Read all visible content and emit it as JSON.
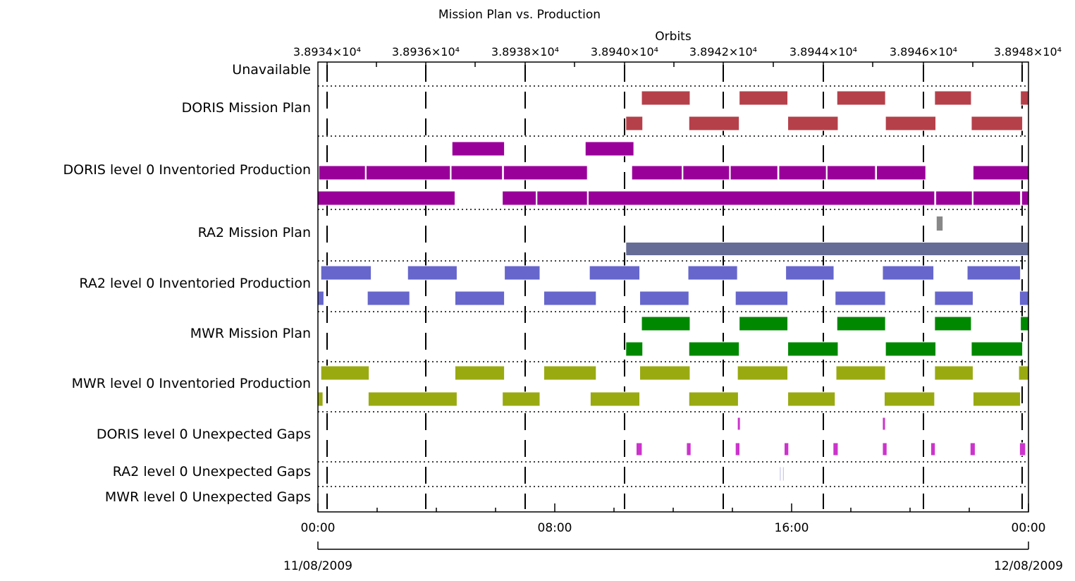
{
  "chart_data": {
    "type": "timeline",
    "title": "Mission Plan vs. Production",
    "top_axis": {
      "label": "Orbits",
      "ticks": [
        "3.8934×10⁴",
        "3.8936×10⁴",
        "3.8938×10⁴",
        "3.8940×10⁴",
        "3.8942×10⁴",
        "3.8944×10⁴",
        "3.8946×10⁴",
        "3.8948×10⁴"
      ],
      "range": [
        38934,
        38948
      ]
    },
    "bottom_axis": {
      "ticks": [
        "00:00",
        "08:00",
        "16:00",
        "00:00"
      ],
      "range_hours": [
        0,
        24
      ],
      "start_date": "11/08/2009",
      "end_date": "12/08/2009"
    },
    "grid": true,
    "rows": [
      {
        "label": "Unavailable",
        "tracks": []
      },
      {
        "label": "DORIS Mission Plan",
        "color": "#b5404a",
        "tracks": [
          [
            [
              10.93,
              12.57
            ],
            [
              14.23,
              15.87
            ],
            [
              17.53,
              19.17
            ],
            [
              20.83,
              22.07
            ],
            [
              23.73,
              24.0
            ]
          ],
          [
            [
              10.4,
              10.97
            ],
            [
              12.53,
              14.23
            ],
            [
              15.87,
              17.57
            ],
            [
              19.17,
              20.87
            ],
            [
              22.07,
              23.8
            ]
          ]
        ]
      },
      {
        "label": "DORIS level 0 Inventoried Production",
        "color": "#990099",
        "tracks": [
          [
            [
              4.53,
              6.3
            ],
            [
              9.03,
              10.67
            ]
          ],
          [
            [
              0.03,
              1.6
            ],
            [
              1.63,
              4.47
            ],
            [
              4.5,
              6.23
            ],
            [
              6.27,
              9.1
            ],
            [
              10.6,
              12.3
            ],
            [
              12.33,
              13.9
            ],
            [
              13.93,
              15.53
            ],
            [
              15.57,
              17.17
            ],
            [
              17.2,
              18.83
            ],
            [
              18.87,
              20.53
            ],
            [
              22.13,
              24.0
            ]
          ],
          [
            [
              0.0,
              4.63
            ],
            [
              6.23,
              7.37
            ],
            [
              7.4,
              9.1
            ],
            [
              9.13,
              20.83
            ],
            [
              20.87,
              22.1
            ],
            [
              22.13,
              23.73
            ],
            [
              23.77,
              24.0
            ]
          ]
        ],
        "extra_tracks": [
          [
            [
              20.9,
              21.1
            ]
          ]
        ]
      },
      {
        "label": "RA2 Mission Plan",
        "color": "#656d96",
        "tracks": [
          [
            [
              10.4,
              24.0
            ]
          ]
        ],
        "marks": [
          [
            20.9,
            21.0
          ]
        ]
      },
      {
        "label": "RA2 level 0 Inventoried Production",
        "color": "#6666cc",
        "tracks": [
          [
            [
              0.1,
              1.8
            ],
            [
              3.03,
              4.7
            ],
            [
              6.3,
              7.5
            ],
            [
              9.17,
              10.87
            ],
            [
              12.5,
              14.17
            ],
            [
              15.8,
              17.43
            ],
            [
              19.07,
              20.8
            ],
            [
              21.93,
              23.73
            ]
          ],
          [
            [
              0.0,
              0.2
            ],
            [
              1.67,
              3.1
            ],
            [
              4.63,
              6.3
            ],
            [
              7.63,
              9.4
            ],
            [
              10.87,
              12.53
            ],
            [
              14.1,
              15.87
            ],
            [
              17.47,
              19.17
            ],
            [
              20.83,
              22.13
            ],
            [
              23.7,
              24.0
            ]
          ]
        ]
      },
      {
        "label": "MWR Mission Plan",
        "color": "#008800",
        "tracks": [
          [
            [
              10.93,
              12.57
            ],
            [
              14.23,
              15.87
            ],
            [
              17.53,
              19.17
            ],
            [
              20.83,
              22.07
            ],
            [
              23.73,
              24.0
            ]
          ],
          [
            [
              10.4,
              10.97
            ],
            [
              12.53,
              14.23
            ],
            [
              15.87,
              17.57
            ],
            [
              19.17,
              20.87
            ],
            [
              22.07,
              23.8
            ]
          ]
        ]
      },
      {
        "label": "MWR level 0 Inventoried Production",
        "color": "#99aa11",
        "tracks": [
          [
            [
              0.1,
              1.73
            ],
            [
              4.63,
              6.3
            ],
            [
              7.63,
              9.4
            ],
            [
              10.87,
              12.57
            ],
            [
              14.17,
              15.87
            ],
            [
              17.5,
              19.17
            ],
            [
              20.83,
              22.13
            ],
            [
              23.67,
              24.0
            ]
          ],
          [
            [
              0.0,
              0.17
            ],
            [
              1.7,
              4.7
            ],
            [
              6.23,
              7.5
            ],
            [
              9.2,
              10.87
            ],
            [
              12.53,
              14.2
            ],
            [
              15.87,
              17.47
            ],
            [
              19.13,
              20.83
            ],
            [
              22.13,
              23.73
            ]
          ]
        ]
      },
      {
        "label": "DORIS level 0 Unexpected Gaps",
        "color": "#cc33cc",
        "tracks": [
          [
            [
              14.17,
              14.22
            ],
            [
              19.07,
              19.12
            ]
          ],
          [
            [
              10.75,
              10.95
            ],
            [
              12.45,
              12.6
            ],
            [
              14.1,
              14.25
            ],
            [
              15.75,
              15.9
            ],
            [
              17.4,
              17.57
            ],
            [
              19.07,
              19.22
            ],
            [
              20.7,
              20.85
            ],
            [
              22.03,
              22.2
            ],
            [
              23.7,
              23.9
            ]
          ]
        ]
      },
      {
        "label": "RA2 level 0 Unexpected Gaps",
        "color": "#7777cc",
        "tracks": [
          [
            [
              15.6,
              15.63
            ],
            [
              15.7,
              15.73
            ]
          ]
        ]
      },
      {
        "label": "MWR level 0 Unexpected Gaps",
        "tracks": []
      }
    ]
  }
}
